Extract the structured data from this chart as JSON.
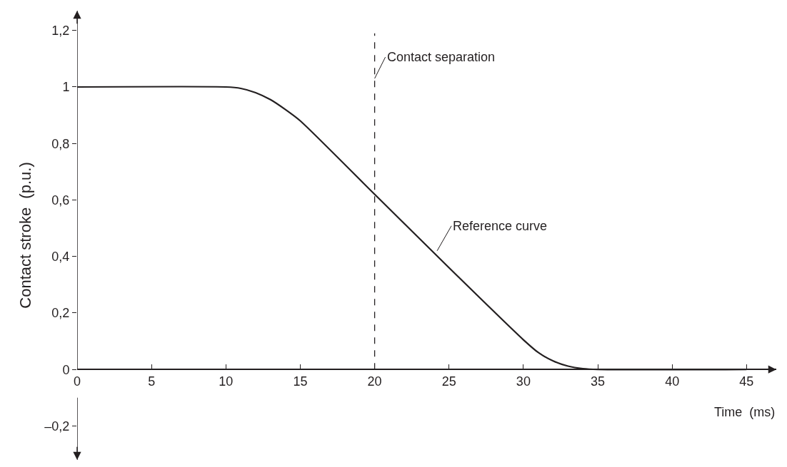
{
  "chart_data": {
    "type": "line",
    "xlabel": "Time  (ms)",
    "ylabel": "Contact stroke  (p.u.)",
    "x": [
      0,
      10,
      11,
      12,
      13,
      14,
      15,
      20,
      25,
      30,
      31,
      32,
      33,
      34,
      35,
      45
    ],
    "series": [
      {
        "color": "#231f20",
        "values": [
          1,
          1,
          0.995,
          0.98,
          0.955,
          0.92,
          0.88,
          0.62,
          0.36,
          0.105,
          0.06,
          0.03,
          0.012,
          0.003,
          0,
          0
        ]
      }
    ],
    "xlim": [
      0,
      47
    ],
    "xticks": [
      0,
      5,
      10,
      15,
      20,
      25,
      30,
      35,
      40,
      45
    ],
    "ylim": [
      -0.32,
      1.27
    ],
    "yticks": [
      {
        "value": -0.2,
        "label": "–0,2"
      },
      0,
      {
        "value": 0.2,
        "label": "0,2"
      },
      {
        "value": 0.4,
        "label": "0,4"
      },
      {
        "value": 0.6,
        "label": "0,6"
      },
      {
        "value": 0.8,
        "label": "0,8"
      },
      1,
      {
        "value": 1.2,
        "label": "1,2"
      }
    ],
    "ref_lines": [
      {
        "axis": "x",
        "value": 20,
        "label": "Contact separation",
        "color": "#231f20",
        "line_style": "dashed"
      }
    ],
    "annotations": [
      {
        "text": "Reference curve",
        "x": 24.2,
        "y": 0.42
      }
    ],
    "marker": "none",
    "line_style": "solid"
  }
}
